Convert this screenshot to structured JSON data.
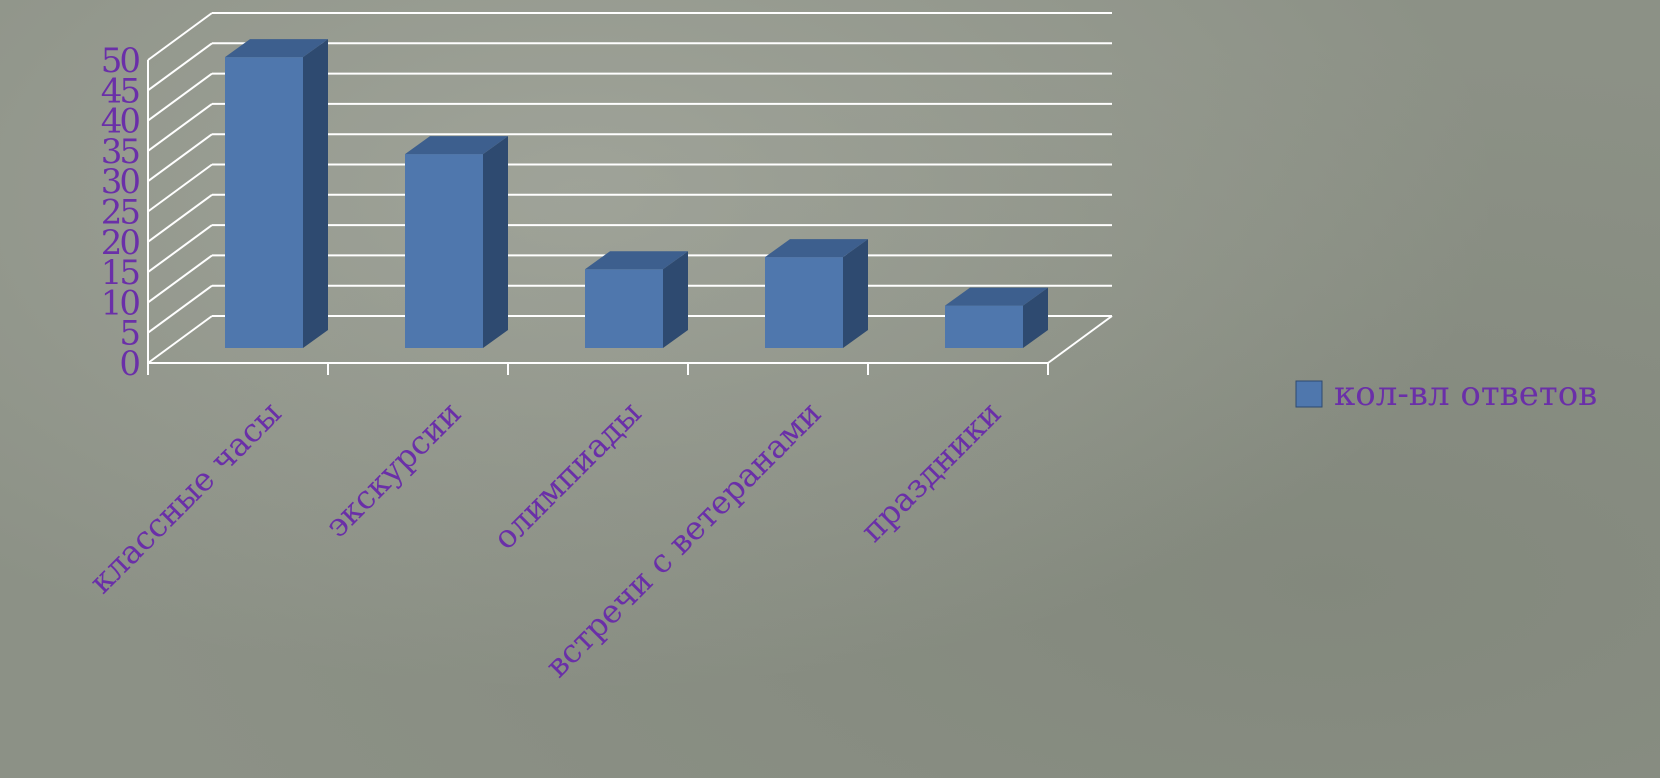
{
  "chart_data": {
    "type": "bar",
    "categories": [
      "классные часы",
      "экскурсии",
      "олимпиады",
      "встречи с ветеранами",
      "праздники"
    ],
    "series": [
      {
        "name": "кол-вл ответов",
        "values": [
          48,
          32,
          13,
          15,
          7
        ]
      }
    ],
    "ylim": [
      0,
      50
    ],
    "yticks": [
      0,
      5,
      10,
      15,
      20,
      25,
      30,
      35,
      40,
      45,
      50
    ],
    "grid": true,
    "legend": "right",
    "colors": {
      "bar_front": "#4f77ad",
      "bar_side": "#2e4a70",
      "bar_top": "#3d5f8e",
      "gridline": "#ffffff",
      "text": "#6a2fa8"
    }
  }
}
